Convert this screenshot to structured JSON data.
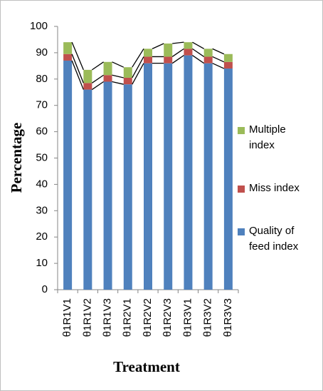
{
  "chart_data": {
    "type": "stacked_bar",
    "xlabel": "Treatment",
    "ylabel": "Percentage",
    "categories": [
      "θ1R1V1",
      "θ1R1V2",
      "θ1R1V3",
      "θ1R2V1",
      "θ1R2V2",
      "θ1R2V3",
      "θ1R3V1",
      "θ1R3V2",
      "θ1R3V3"
    ],
    "series": [
      {
        "name": "Quality of feed index",
        "color": "#4f81bd",
        "values": [
          87,
          76,
          79,
          78,
          86,
          86,
          89,
          86,
          84
        ]
      },
      {
        "name": "Miss index",
        "color": "#c0504d",
        "values": [
          2.5,
          2.5,
          2.5,
          2.5,
          2.5,
          2.5,
          2.5,
          2.5,
          2.5
        ]
      },
      {
        "name": "Multiple index",
        "color": "#9bbb59",
        "values": [
          4.5,
          5,
          5,
          4,
          3,
          5,
          2.5,
          3,
          3
        ]
      }
    ],
    "ylim": [
      0,
      100
    ],
    "yticks": [
      0,
      10,
      20,
      30,
      40,
      50,
      60,
      70,
      80,
      90,
      100
    ]
  }
}
